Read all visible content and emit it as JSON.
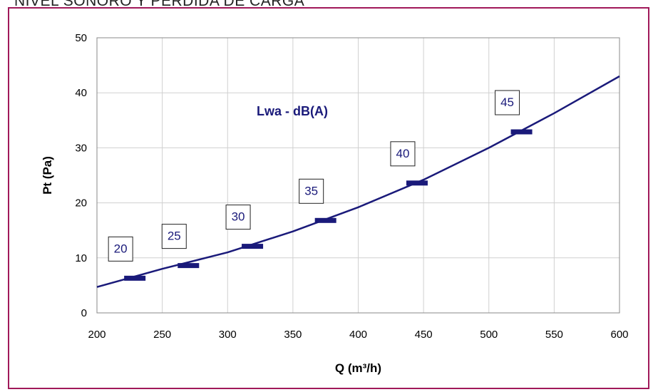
{
  "page": {
    "title": "NIVEL SONORO Y PÉRDIDA DE CARGA"
  },
  "chart_data": {
    "type": "line",
    "xlabel": "Q (m³/h)",
    "ylabel": "Pt (Pa)",
    "xlim": [
      200,
      600
    ],
    "ylim": [
      0,
      50
    ],
    "x_ticks": [
      200,
      250,
      300,
      350,
      400,
      450,
      500,
      550,
      600
    ],
    "y_ticks": [
      0,
      10,
      20,
      30,
      40,
      50
    ],
    "grid": true,
    "annotation": "Lwa - dB(A)",
    "series": [
      {
        "x": [
          200,
          250,
          300,
          350,
          400,
          450,
          500,
          550,
          600
        ],
        "y": [
          4.7,
          8.0,
          11.0,
          14.8,
          19.2,
          24.2,
          30.0,
          36.3,
          43.0
        ]
      }
    ],
    "markers": [
      {
        "x": 229,
        "y": 6.3,
        "label": "20"
      },
      {
        "x": 270,
        "y": 8.6,
        "label": "25"
      },
      {
        "x": 319,
        "y": 12.1,
        "label": "30"
      },
      {
        "x": 375,
        "y": 16.8,
        "label": "35"
      },
      {
        "x": 445,
        "y": 23.6,
        "label": "40"
      },
      {
        "x": 525,
        "y": 32.9,
        "label": "45"
      }
    ],
    "colors": {
      "line": "#1a1a7a",
      "frame": "#a0195a",
      "grid": "#d0d0d0"
    }
  }
}
